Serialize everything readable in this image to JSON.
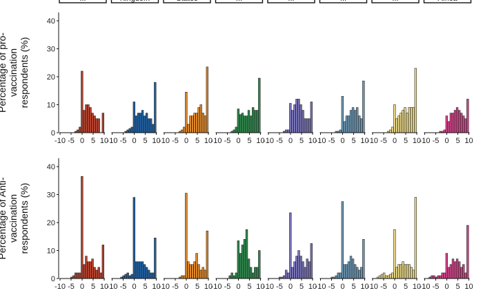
{
  "chart_data": {
    "type": "bar",
    "facet_labels": [
      "...",
      "Kingdom",
      "States",
      "...",
      "...",
      "...",
      "...",
      "Africa"
    ],
    "facet_colors": [
      "#b5432f",
      "#1f63a8",
      "#e08a2c",
      "#2e8b4e",
      "#7a74b8",
      "#6e9ab8",
      "#efdc8a",
      "#d9438c"
    ],
    "x": [
      -10,
      -9,
      -8,
      -7,
      -6,
      -5,
      -4,
      -3,
      -2,
      -1,
      0,
      1,
      2,
      3,
      4,
      5,
      6,
      7,
      8,
      9,
      10
    ],
    "x_tick_values": [
      -10,
      -5,
      0,
      5,
      10
    ],
    "x_tick_labels": [
      "-10",
      "-5",
      "0",
      "5",
      "10"
    ],
    "xlim": [
      -10,
      10
    ],
    "y_tick_values": [
      0,
      10,
      20,
      30,
      40
    ],
    "y_tick_labels": [
      "0",
      "10",
      "20",
      "30",
      "40"
    ],
    "ylim": [
      0,
      42
    ],
    "rows": [
      {
        "ylabel": [
          "Percentage of pro-",
          "vaccination",
          "respondents (%)"
        ],
        "panels": [
          {
            "values": [
              0,
              0,
              0,
              0,
              0,
              0,
              0,
              0.5,
              1,
              2,
              22,
              8,
              10,
              10,
              9,
              7,
              6,
              5,
              5,
              0,
              7
            ]
          },
          {
            "values": [
              0,
              0,
              0,
              0,
              0,
              0,
              0.5,
              1,
              1.5,
              2,
              11,
              6,
              7,
              7,
              8,
              6,
              7,
              5,
              5,
              3,
              18
            ]
          },
          {
            "values": [
              0,
              0,
              0,
              0,
              0,
              0,
              0,
              0.5,
              1,
              2,
              14.5,
              3,
              6,
              6,
              7,
              7,
              9,
              10,
              7,
              6,
              23.5
            ]
          },
          {
            "values": [
              0,
              0,
              0,
              0,
              0,
              0,
              0,
              0.5,
              1,
              2,
              8.5,
              6.5,
              7,
              6,
              6,
              8,
              6,
              9,
              8,
              8,
              19.5
            ]
          },
          {
            "values": [
              0,
              0,
              0,
              0,
              0,
              0,
              0,
              0.5,
              1,
              1,
              10.5,
              8,
              10,
              12,
              12,
              10,
              8,
              5,
              5,
              5,
              11
            ]
          },
          {
            "values": [
              0,
              0,
              0,
              0,
              0,
              0,
              0,
              0.5,
              0.5,
              1,
              13,
              4,
              6,
              6,
              8,
              9,
              8,
              9,
              6,
              5,
              18.5
            ]
          },
          {
            "values": [
              0,
              0,
              0,
              0,
              0,
              0,
              0,
              0.5,
              1,
              2,
              10,
              5,
              6,
              7,
              8,
              9,
              7,
              9,
              9,
              9,
              23
            ]
          },
          {
            "values": [
              0,
              0,
              0,
              0,
              0,
              0,
              0,
              0.5,
              0.5,
              1,
              6,
              4,
              7,
              7,
              8,
              9,
              8,
              7,
              6,
              5,
              12
            ]
          }
        ]
      },
      {
        "ylabel": [
          "Percentage of Anti-",
          "vaccination",
          "respondents (%)"
        ],
        "panels": [
          {
            "values": [
              0,
              0,
              0,
              0,
              0,
              0.5,
              1,
              2,
              2,
              2,
              36.5,
              5,
              8,
              6,
              6,
              7,
              4,
              3,
              4,
              2,
              12
            ]
          },
          {
            "values": [
              0,
              0,
              0,
              0,
              0.5,
              1,
              1.5,
              2,
              1,
              1.5,
              29,
              6,
              6,
              6,
              6,
              5,
              4,
              3,
              2,
              2,
              14.5
            ]
          },
          {
            "values": [
              0,
              0,
              0,
              0,
              0,
              0,
              0,
              0.5,
              1,
              1,
              30.5,
              6,
              5,
              5,
              6,
              9,
              5,
              3,
              4,
              3,
              17
            ]
          },
          {
            "values": [
              0,
              0,
              0,
              0,
              0,
              0,
              1,
              2,
              1,
              2,
              13.5,
              9,
              12,
              14,
              17.5,
              7,
              4,
              2,
              4,
              4,
              10
            ]
          },
          {
            "values": [
              0,
              0,
              0,
              0,
              0,
              0.5,
              0.5,
              1,
              3,
              2,
              23.5,
              4,
              6,
              8,
              10,
              8,
              6,
              4,
              7,
              6,
              12.5
            ]
          },
          {
            "values": [
              0,
              0,
              0,
              0,
              0,
              0.5,
              0.5,
              1,
              2,
              2,
              27.5,
              5,
              5,
              6,
              8,
              7,
              5,
              4,
              3,
              4,
              14
            ]
          },
          {
            "values": [
              0,
              0,
              0.5,
              1,
              1.5,
              2,
              1,
              1,
              1.5,
              2,
              17.5,
              4,
              5,
              5,
              6,
              5,
              5,
              5,
              4,
              3,
              29
            ]
          },
          {
            "values": [
              0,
              0,
              0.5,
              1,
              1,
              0.5,
              1,
              1,
              2,
              2,
              9,
              4,
              5,
              7,
              6,
              7,
              6,
              4,
              5,
              2,
              19
            ]
          }
        ]
      }
    ]
  }
}
